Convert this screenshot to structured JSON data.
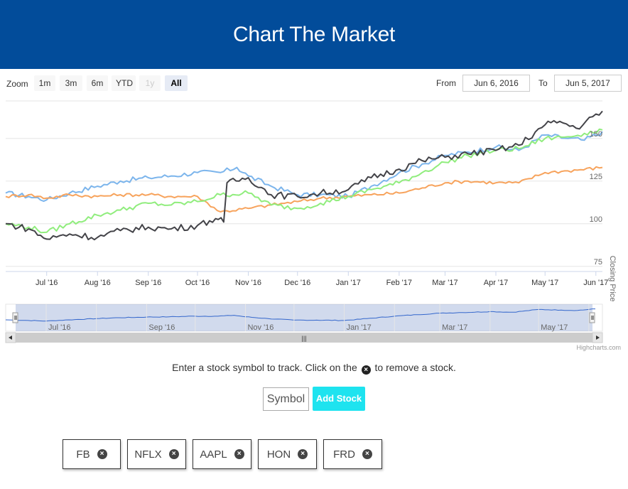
{
  "header": {
    "title": "Chart The Market"
  },
  "range_selector": {
    "zoom_label": "Zoom",
    "buttons": [
      {
        "label": "1m",
        "state": "normal"
      },
      {
        "label": "3m",
        "state": "normal"
      },
      {
        "label": "6m",
        "state": "normal"
      },
      {
        "label": "YTD",
        "state": "normal"
      },
      {
        "label": "1y",
        "state": "disabled"
      },
      {
        "label": "All",
        "state": "active"
      }
    ],
    "from_label": "From",
    "from_value": "Jun 6, 2016",
    "to_label": "To",
    "to_value": "Jun 5, 2017"
  },
  "chart_data": {
    "type": "line",
    "title": "",
    "ylabel": "Closing Price",
    "xlabel": "",
    "ylim": [
      72,
      172
    ],
    "xlim": [
      "2016-06-06",
      "2017-06-05"
    ],
    "y_ticks": [
      75,
      100,
      125,
      150
    ],
    "x_ticks": [
      {
        "label": "Jul '16",
        "date": "2016-07-01"
      },
      {
        "label": "Aug '16",
        "date": "2016-08-01"
      },
      {
        "label": "Sep '16",
        "date": "2016-09-01"
      },
      {
        "label": "Oct '16",
        "date": "2016-10-01"
      },
      {
        "label": "Nov '16",
        "date": "2016-11-01"
      },
      {
        "label": "Dec '16",
        "date": "2016-12-01"
      },
      {
        "label": "Jan '17",
        "date": "2017-01-01"
      },
      {
        "label": "Feb '17",
        "date": "2017-02-01"
      },
      {
        "label": "Mar '17",
        "date": "2017-03-01"
      },
      {
        "label": "Apr '17",
        "date": "2017-04-01"
      },
      {
        "label": "May '17",
        "date": "2017-05-01"
      },
      {
        "label": "Jun '17",
        "date": "2017-06-01"
      }
    ],
    "grid": true,
    "series": [
      {
        "color": "#7cb5ec",
        "points": [
          [
            "2016-06-06",
            118
          ],
          [
            "2016-06-20",
            116
          ],
          [
            "2016-07-01",
            114
          ],
          [
            "2016-07-15",
            118
          ],
          [
            "2016-08-01",
            122
          ],
          [
            "2016-08-15",
            125
          ],
          [
            "2016-09-01",
            127
          ],
          [
            "2016-09-15",
            128
          ],
          [
            "2016-10-01",
            130
          ],
          [
            "2016-10-15",
            130
          ],
          [
            "2016-10-25",
            133
          ],
          [
            "2016-11-01",
            128
          ],
          [
            "2016-11-15",
            122
          ],
          [
            "2016-12-01",
            117
          ],
          [
            "2016-12-15",
            117
          ],
          [
            "2017-01-01",
            116
          ],
          [
            "2017-01-15",
            122
          ],
          [
            "2017-02-01",
            130
          ],
          [
            "2017-02-15",
            135
          ],
          [
            "2017-03-01",
            140
          ],
          [
            "2017-03-15",
            142
          ],
          [
            "2017-04-01",
            145
          ],
          [
            "2017-04-15",
            143
          ],
          [
            "2017-05-01",
            152
          ],
          [
            "2017-05-15",
            150
          ],
          [
            "2017-05-25",
            149
          ],
          [
            "2017-06-05",
            154
          ]
        ]
      },
      {
        "color": "#f7a35c",
        "points": [
          [
            "2016-06-06",
            116
          ],
          [
            "2016-06-20",
            117
          ],
          [
            "2016-07-01",
            115
          ],
          [
            "2016-07-15",
            117
          ],
          [
            "2016-08-01",
            116
          ],
          [
            "2016-08-15",
            117
          ],
          [
            "2016-09-01",
            117
          ],
          [
            "2016-09-15",
            116
          ],
          [
            "2016-10-01",
            116
          ],
          [
            "2016-10-15",
            107
          ],
          [
            "2016-11-01",
            109
          ],
          [
            "2016-11-15",
            111
          ],
          [
            "2016-12-01",
            113
          ],
          [
            "2016-12-15",
            115
          ],
          [
            "2017-01-01",
            116
          ],
          [
            "2017-01-15",
            117
          ],
          [
            "2017-02-01",
            118
          ],
          [
            "2017-02-15",
            121
          ],
          [
            "2017-03-01",
            124
          ],
          [
            "2017-03-15",
            125
          ],
          [
            "2017-04-01",
            124
          ],
          [
            "2017-04-15",
            124
          ],
          [
            "2017-05-01",
            130
          ],
          [
            "2017-05-15",
            131
          ],
          [
            "2017-06-05",
            133
          ]
        ]
      },
      {
        "color": "#90ed7d",
        "points": [
          [
            "2016-06-06",
            100
          ],
          [
            "2016-06-20",
            98
          ],
          [
            "2016-07-01",
            95
          ],
          [
            "2016-07-15",
            100
          ],
          [
            "2016-08-01",
            105
          ],
          [
            "2016-08-15",
            108
          ],
          [
            "2016-09-01",
            112
          ],
          [
            "2016-09-15",
            111
          ],
          [
            "2016-10-01",
            113
          ],
          [
            "2016-10-15",
            117
          ],
          [
            "2016-11-01",
            118
          ],
          [
            "2016-11-15",
            111
          ],
          [
            "2016-12-01",
            109
          ],
          [
            "2016-12-15",
            112
          ],
          [
            "2017-01-01",
            116
          ],
          [
            "2017-01-15",
            120
          ],
          [
            "2017-02-01",
            124
          ],
          [
            "2017-02-15",
            130
          ],
          [
            "2017-03-01",
            136
          ],
          [
            "2017-03-15",
            140
          ],
          [
            "2017-04-01",
            143
          ],
          [
            "2017-04-15",
            144
          ],
          [
            "2017-05-01",
            150
          ],
          [
            "2017-05-15",
            151
          ],
          [
            "2017-05-25",
            153
          ],
          [
            "2017-06-05",
            155
          ]
        ]
      },
      {
        "color": "#434348",
        "points": [
          [
            "2016-06-06",
            100
          ],
          [
            "2016-06-20",
            97
          ],
          [
            "2016-07-01",
            91
          ],
          [
            "2016-07-15",
            94
          ],
          [
            "2016-08-01",
            92
          ],
          [
            "2016-08-15",
            96
          ],
          [
            "2016-09-01",
            98
          ],
          [
            "2016-09-15",
            97
          ],
          [
            "2016-10-01",
            99
          ],
          [
            "2016-10-12",
            103
          ],
          [
            "2016-10-17",
            101
          ],
          [
            "2016-10-19",
            124
          ],
          [
            "2016-11-01",
            127
          ],
          [
            "2016-11-15",
            117
          ],
          [
            "2016-12-01",
            116
          ],
          [
            "2016-12-15",
            118
          ],
          [
            "2017-01-01",
            120
          ],
          [
            "2017-01-15",
            127
          ],
          [
            "2017-02-01",
            132
          ],
          [
            "2017-02-15",
            137
          ],
          [
            "2017-03-01",
            139
          ],
          [
            "2017-03-15",
            141
          ],
          [
            "2017-04-01",
            143
          ],
          [
            "2017-04-15",
            146
          ],
          [
            "2017-05-01",
            158
          ],
          [
            "2017-05-10",
            160
          ],
          [
            "2017-05-20",
            156
          ],
          [
            "2017-06-05",
            166
          ]
        ]
      }
    ]
  },
  "navigator": {
    "x_ticks": [
      "Jul '16",
      "Sep '16",
      "Nov '16",
      "Jan '17",
      "Mar '17",
      "May '17"
    ],
    "scrollbar_grip": "|||"
  },
  "credits": "Highcharts.com",
  "instructions": {
    "before": "Enter a stock symbol to track. Click on the",
    "icon_glyph": "×",
    "after": "to remove a stock."
  },
  "form": {
    "symbol_placeholder": "Symbol",
    "add_button_label": "Add Stock"
  },
  "stocks": [
    "FB",
    "NFLX",
    "AAPL",
    "HON",
    "FRD"
  ],
  "remove_glyph": "×"
}
